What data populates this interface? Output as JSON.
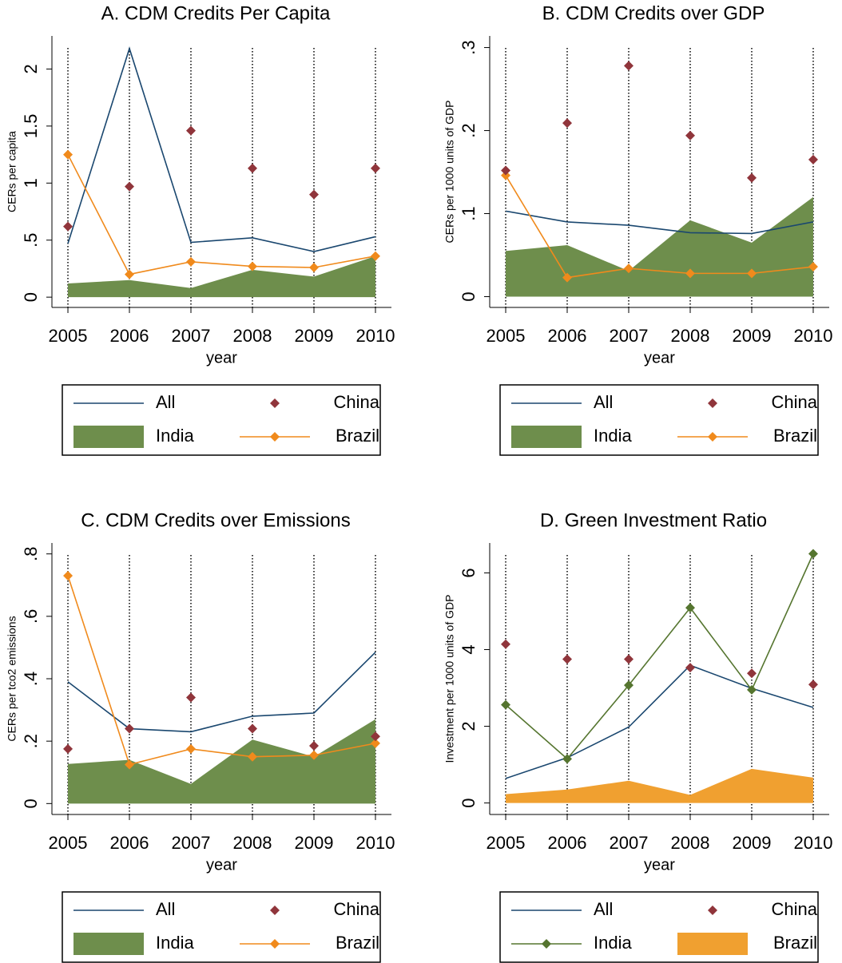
{
  "chart_data": [
    {
      "type": "line",
      "title": "A. CDM Credits Per Capita",
      "y_label": "CERs per capita",
      "x_label": "year",
      "x": [
        2005,
        2006,
        2007,
        2008,
        2009,
        2010
      ],
      "xlim": [
        2004.74,
        2010.26
      ],
      "xticks": [
        2005,
        2006,
        2007,
        2008,
        2009,
        2010
      ],
      "ylim": [
        -0.09,
        2.29
      ],
      "yticks": [
        0,
        {
          "value": 0.5,
          "label": ".5"
        },
        1,
        {
          "value": 1.5,
          "label": "1.5"
        },
        2
      ],
      "xgrid": true,
      "series": [
        {
          "name": "All",
          "color": "#1a476f",
          "style": "line",
          "values": [
            0.47,
            2.18,
            0.48,
            0.52,
            0.4,
            0.53
          ]
        },
        {
          "name": "China",
          "color": "#90353b",
          "style": "markers",
          "values": [
            0.62,
            0.97,
            1.46,
            1.13,
            0.9,
            1.13
          ]
        },
        {
          "name": "India",
          "color": "#6e8e4c",
          "style": "area",
          "values": [
            0.12,
            0.15,
            0.08,
            0.24,
            0.18,
            0.36
          ]
        },
        {
          "name": "Brazil",
          "color": "#f08a1c",
          "style": "line-markers",
          "values": [
            1.25,
            0.2,
            0.31,
            0.27,
            0.26,
            0.36
          ]
        }
      ]
    },
    {
      "type": "line",
      "title": "B. CDM Credits over GDP",
      "y_label": "CERs per 1000 units of GDP",
      "x_label": "year",
      "x": [
        2005,
        2006,
        2007,
        2008,
        2009,
        2010
      ],
      "xlim": [
        2004.74,
        2010.26
      ],
      "xticks": [
        2005,
        2006,
        2007,
        2008,
        2009,
        2010
      ],
      "ylim": [
        -0.013,
        0.314
      ],
      "yticks": [
        0,
        {
          "value": 0.1,
          "label": ".1"
        },
        {
          "value": 0.2,
          "label": ".2"
        },
        {
          "value": 0.3,
          "label": ".3"
        }
      ],
      "xgrid": true,
      "series": [
        {
          "name": "All",
          "color": "#1a476f",
          "style": "line",
          "values": [
            0.103,
            0.09,
            0.086,
            0.077,
            0.076,
            0.09
          ]
        },
        {
          "name": "China",
          "color": "#90353b",
          "style": "markers",
          "values": [
            0.152,
            0.209,
            0.278,
            0.194,
            0.143,
            0.165
          ]
        },
        {
          "name": "India",
          "color": "#6e8e4c",
          "style": "area",
          "values": [
            0.055,
            0.062,
            0.031,
            0.092,
            0.065,
            0.12
          ]
        },
        {
          "name": "Brazil",
          "color": "#f08a1c",
          "style": "line-markers",
          "values": [
            0.146,
            0.023,
            0.034,
            0.028,
            0.028,
            0.036
          ]
        }
      ]
    },
    {
      "type": "line",
      "title": "C. CDM Credits over Emissions",
      "y_label": "CERs per tco2 emissions",
      "x_label": "year",
      "x": [
        2005,
        2006,
        2007,
        2008,
        2009,
        2010
      ],
      "xlim": [
        2004.74,
        2010.26
      ],
      "xticks": [
        2005,
        2006,
        2007,
        2008,
        2009,
        2010
      ],
      "ylim": [
        -0.035,
        0.835
      ],
      "yticks": [
        0,
        {
          "value": 0.2,
          "label": ".2"
        },
        {
          "value": 0.4,
          "label": ".4"
        },
        {
          "value": 0.6,
          "label": ".6"
        },
        {
          "value": 0.8,
          "label": ".8"
        }
      ],
      "xgrid": true,
      "series": [
        {
          "name": "All",
          "color": "#1a476f",
          "style": "line",
          "values": [
            0.39,
            0.24,
            0.23,
            0.28,
            0.29,
            0.485
          ]
        },
        {
          "name": "China",
          "color": "#90353b",
          "style": "markers",
          "values": [
            0.175,
            0.24,
            0.34,
            0.24,
            0.185,
            0.215
          ]
        },
        {
          "name": "India",
          "color": "#6e8e4c",
          "style": "area",
          "values": [
            0.127,
            0.14,
            0.063,
            0.205,
            0.15,
            0.27
          ]
        },
        {
          "name": "Brazil",
          "color": "#f08a1c",
          "style": "line-markers",
          "values": [
            0.73,
            0.125,
            0.175,
            0.15,
            0.155,
            0.193
          ]
        }
      ]
    },
    {
      "type": "line",
      "title": "D. Green Investment Ratio",
      "y_label": "Investment per 1000 units of GDP",
      "x_label": "year",
      "x": [
        2005,
        2006,
        2007,
        2008,
        2009,
        2010
      ],
      "xlim": [
        2004.74,
        2010.26
      ],
      "xticks": [
        2005,
        2006,
        2007,
        2008,
        2009,
        2010
      ],
      "ylim": [
        -0.3,
        6.78
      ],
      "yticks": [
        0,
        2,
        4,
        6
      ],
      "xgrid": true,
      "series": [
        {
          "name": "All",
          "color": "#1a476f",
          "style": "line",
          "values": [
            0.64,
            1.18,
            1.98,
            3.59,
            2.99,
            2.49
          ]
        },
        {
          "name": "China",
          "color": "#90353b",
          "style": "markers",
          "values": [
            4.14,
            3.75,
            3.75,
            3.53,
            3.38,
            3.09
          ]
        },
        {
          "name": "India",
          "color": "#55752f",
          "style": "line-markers",
          "values": [
            2.56,
            1.15,
            3.07,
            5.09,
            2.95,
            6.5
          ]
        },
        {
          "name": "Brazil",
          "color": "#f0a030",
          "style": "area",
          "values": [
            0.23,
            0.35,
            0.58,
            0.21,
            0.89,
            0.66
          ]
        }
      ]
    }
  ]
}
